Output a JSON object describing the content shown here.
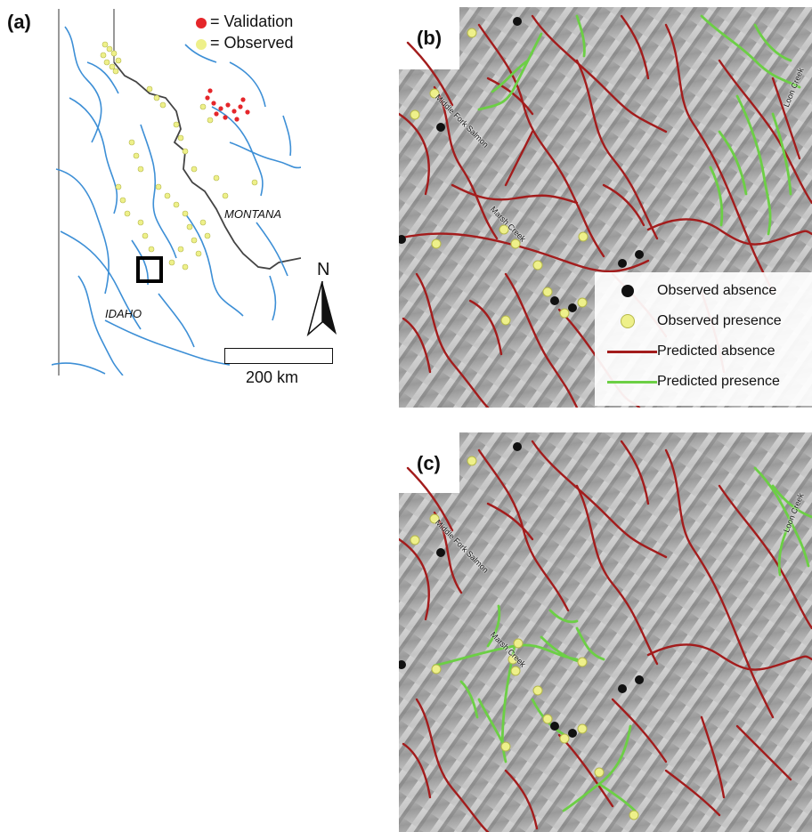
{
  "panels": {
    "a": {
      "label": "(a)",
      "legend": {
        "validation": "= Validation",
        "observed": "= Observed"
      },
      "state_labels": {
        "montana": "MONTANA",
        "idaho": "IDAHO"
      },
      "north": "N",
      "scale": "200 km"
    },
    "b": {
      "label": "(b)",
      "rivers": {
        "middle_fork": "Middle Fork Salmon",
        "marsh": "Marsh Creek",
        "loon": "Loon Creek"
      },
      "legend": {
        "observed_absence": "Observed absence",
        "observed_presence": "Observed presence",
        "predicted_absence": "Predicted absence",
        "predicted_presence": "Predicted presence"
      }
    },
    "c": {
      "label": "(c)",
      "rivers": {
        "middle_fork": "Middle Fork Salmon",
        "marsh": "Marsh Creek",
        "loon": "Loon Creek"
      }
    }
  },
  "colors": {
    "stream_blue": "#3d8fd6",
    "validation_red": "#e5262a",
    "observed_yellow": "#eef08a",
    "absence_red": "#a31c1c",
    "presence_green": "#6ccf45",
    "terrain": "#a8a8a8"
  }
}
